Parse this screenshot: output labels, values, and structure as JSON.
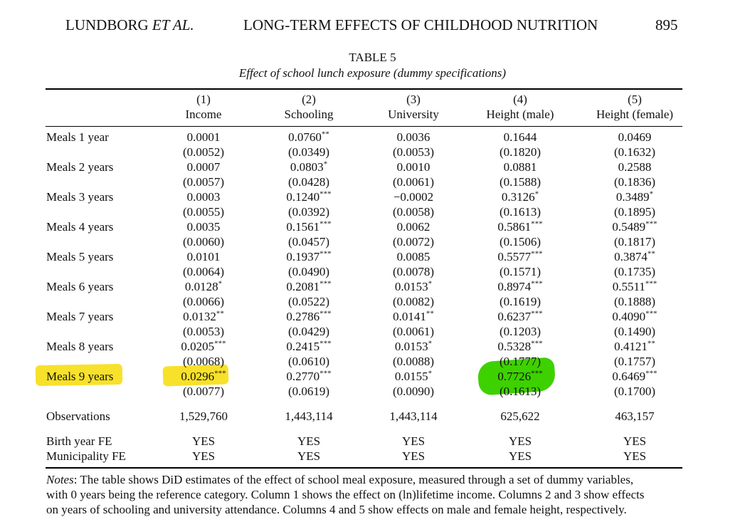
{
  "running_head": {
    "authors": "LUNDBORG",
    "authors_etal": "ET AL.",
    "title": "LONG-TERM EFFECTS OF CHILDHOOD NUTRITION",
    "page": "895"
  },
  "table": {
    "label": "TABLE 5",
    "subtitle": "Effect of school lunch exposure (dummy specifications)",
    "columns": [
      {
        "num": "(1)",
        "name": "Income"
      },
      {
        "num": "(2)",
        "name": "Schooling"
      },
      {
        "num": "(3)",
        "name": "University"
      },
      {
        "num": "(4)",
        "name": "Height (male)"
      },
      {
        "num": "(5)",
        "name": "Height (female)"
      }
    ],
    "rows": [
      {
        "label": "Meals 1 year",
        "coef": [
          [
            "0.0001",
            ""
          ],
          [
            "0.0760",
            "**"
          ],
          [
            "0.0036",
            ""
          ],
          [
            "0.1644",
            ""
          ],
          [
            "0.0469",
            ""
          ]
        ],
        "se": [
          "(0.0052)",
          "(0.0349)",
          "(0.0053)",
          "(0.1820)",
          "(0.1632)"
        ]
      },
      {
        "label": "Meals 2 years",
        "coef": [
          [
            "0.0007",
            ""
          ],
          [
            "0.0803",
            "*"
          ],
          [
            "0.0010",
            ""
          ],
          [
            "0.0881",
            ""
          ],
          [
            "0.2588",
            ""
          ]
        ],
        "se": [
          "(0.0057)",
          "(0.0428)",
          "(0.0061)",
          "(0.1588)",
          "(0.1836)"
        ]
      },
      {
        "label": "Meals 3 years",
        "coef": [
          [
            "0.0003",
            ""
          ],
          [
            "0.1240",
            "***"
          ],
          [
            "−0.0002",
            ""
          ],
          [
            "0.3126",
            "*"
          ],
          [
            "0.3489",
            "*"
          ]
        ],
        "se": [
          "(0.0055)",
          "(0.0392)",
          "(0.0058)",
          "(0.1613)",
          "(0.1895)"
        ]
      },
      {
        "label": "Meals 4 years",
        "coef": [
          [
            "0.0035",
            ""
          ],
          [
            "0.1561",
            "***"
          ],
          [
            "0.0062",
            ""
          ],
          [
            "0.5861",
            "***"
          ],
          [
            "0.5489",
            "***"
          ]
        ],
        "se": [
          "(0.0060)",
          "(0.0457)",
          "(0.0072)",
          "(0.1506)",
          "(0.1817)"
        ]
      },
      {
        "label": "Meals 5 years",
        "coef": [
          [
            "0.0101",
            ""
          ],
          [
            "0.1937",
            "***"
          ],
          [
            "0.0085",
            ""
          ],
          [
            "0.5577",
            "***"
          ],
          [
            "0.3874",
            "**"
          ]
        ],
        "se": [
          "(0.0064)",
          "(0.0490)",
          "(0.0078)",
          "(0.1571)",
          "(0.1735)"
        ]
      },
      {
        "label": "Meals 6 years",
        "coef": [
          [
            "0.0128",
            "*"
          ],
          [
            "0.2081",
            "***"
          ],
          [
            "0.0153",
            "*"
          ],
          [
            "0.8974",
            "***"
          ],
          [
            "0.5511",
            "***"
          ]
        ],
        "se": [
          "(0.0066)",
          "(0.0522)",
          "(0.0082)",
          "(0.1619)",
          "(0.1888)"
        ]
      },
      {
        "label": "Meals 7 years",
        "coef": [
          [
            "0.0132",
            "**"
          ],
          [
            "0.2786",
            "***"
          ],
          [
            "0.0141",
            "**"
          ],
          [
            "0.6237",
            "***"
          ],
          [
            "0.4090",
            "***"
          ]
        ],
        "se": [
          "(0.0053)",
          "(0.0429)",
          "(0.0061)",
          "(0.1203)",
          "(0.1490)"
        ]
      },
      {
        "label": "Meals 8 years",
        "coef": [
          [
            "0.0205",
            "***"
          ],
          [
            "0.2415",
            "***"
          ],
          [
            "0.0153",
            "*"
          ],
          [
            "0.5328",
            "***"
          ],
          [
            "0.4121",
            "**"
          ]
        ],
        "se": [
          "(0.0068)",
          "(0.0610)",
          "(0.0088)",
          "(0.1777)",
          "(0.1757)"
        ]
      },
      {
        "label": "Meals 9 years",
        "coef": [
          [
            "0.0296",
            "***"
          ],
          [
            "0.2770",
            "***"
          ],
          [
            "0.0155",
            "*"
          ],
          [
            "0.7726",
            "***"
          ],
          [
            "0.6469",
            "***"
          ]
        ],
        "se": [
          "(0.0077)",
          "(0.0619)",
          "(0.0090)",
          "(0.1613)",
          "(0.1700)"
        ]
      }
    ],
    "observations": {
      "label": "Observations",
      "values": [
        "1,529,760",
        "1,443,114",
        "1,443,114",
        "625,622",
        "463,157"
      ]
    },
    "fe_rows": [
      {
        "label": "Birth year FE",
        "values": [
          "YES",
          "YES",
          "YES",
          "YES",
          "YES"
        ]
      },
      {
        "label": "Municipality FE",
        "values": [
          "YES",
          "YES",
          "YES",
          "YES",
          "YES"
        ]
      }
    ]
  },
  "notes": {
    "label": "Notes",
    "line1": ": The table shows DiD estimates of the effect of school meal exposure, measured through a set of dummy variables,",
    "line2": "with 0 years being the reference category. Column 1 shows the effect on (ln)lifetime income. Columns 2 and 3 show effects",
    "line3": "on years of schooling and university attendance. Columns 4 and 5 show effects on male and female height, respectively."
  },
  "highlights": {
    "yellow": "#f8e12a",
    "green": "#3ed100"
  }
}
